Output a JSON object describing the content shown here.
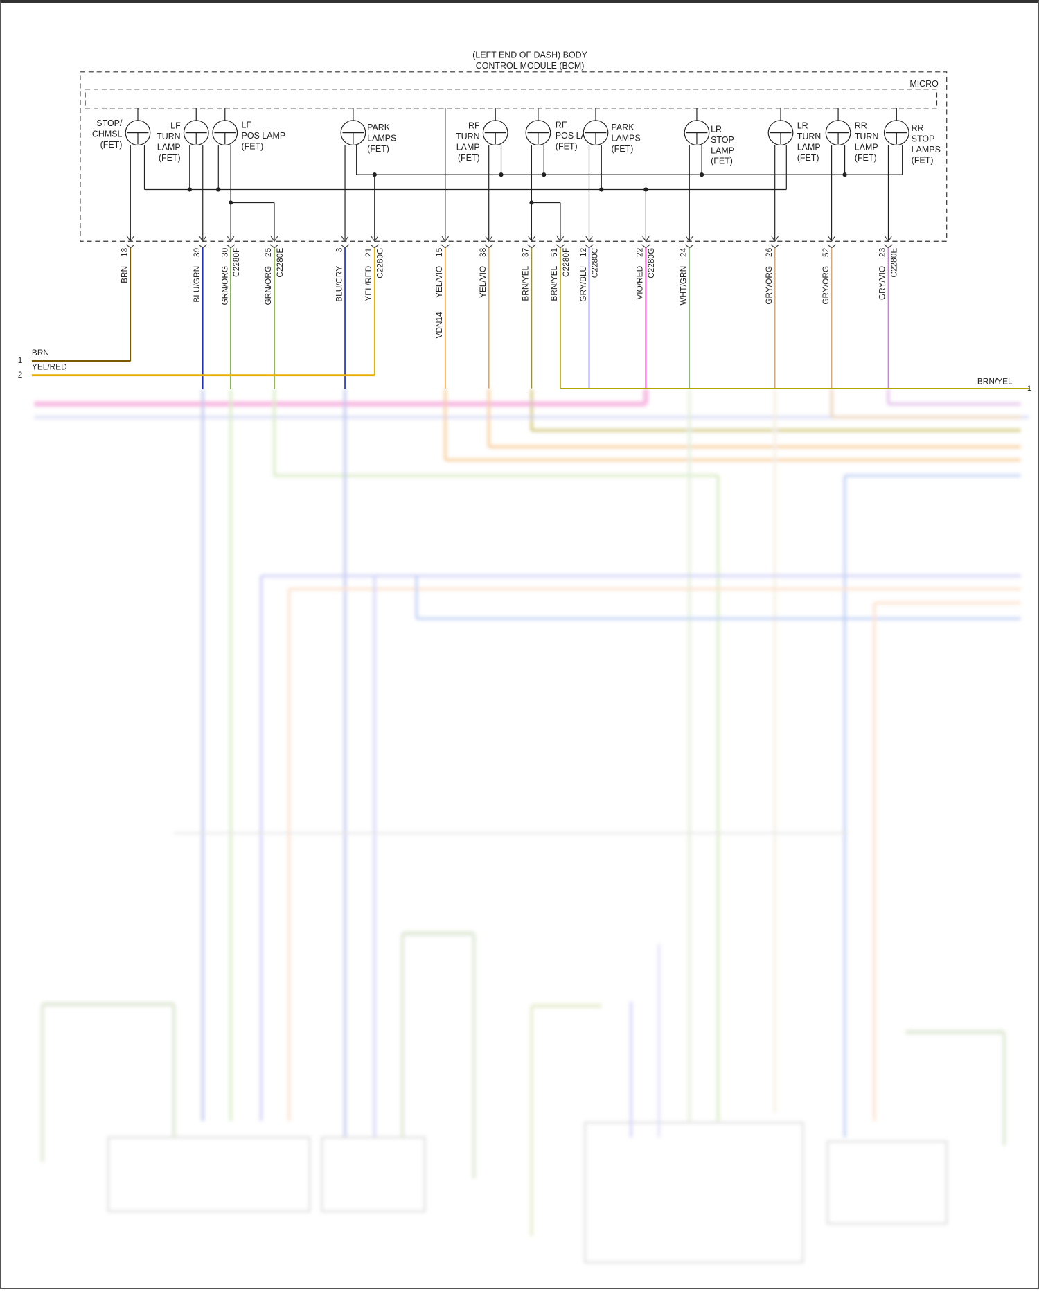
{
  "module": {
    "title_line1": "(LEFT END OF DASH) BODY",
    "title_line2": "CONTROL MODULE (BCM)",
    "micro_label": "MICRO"
  },
  "fets": [
    {
      "id": "stop-chmsl",
      "lines": [
        "STOP/",
        "CHMSL",
        "(FET)"
      ]
    },
    {
      "id": "lf-turn",
      "lines": [
        "LF",
        "TURN",
        "LAMP",
        "(FET)"
      ]
    },
    {
      "id": "lf-pos",
      "lines": [
        "LF",
        "POS LAMP",
        "(FET)"
      ]
    },
    {
      "id": "park-left",
      "lines": [
        "PARK",
        "LAMPS",
        "(FET)"
      ]
    },
    {
      "id": "rf-turn",
      "lines": [
        "RF",
        "TURN",
        "LAMP",
        "(FET)"
      ]
    },
    {
      "id": "rf-pos",
      "lines": [
        "RF",
        "POS LAMP",
        "(FET)"
      ]
    },
    {
      "id": "park-right",
      "lines": [
        "PARK",
        "LAMPS",
        "(FET)"
      ]
    },
    {
      "id": "lr-stop",
      "lines": [
        "LR",
        "STOP",
        "LAMP",
        "(FET)"
      ]
    },
    {
      "id": "lr-turn",
      "lines": [
        "LR",
        "TURN",
        "LAMP",
        "(FET)"
      ]
    },
    {
      "id": "rr-turn",
      "lines": [
        "RR",
        "TURN",
        "LAMP",
        "(FET)"
      ]
    },
    {
      "id": "rr-stop",
      "lines": [
        "RR",
        "STOP",
        "LAMPS",
        "(FET)"
      ]
    }
  ],
  "pins": [
    {
      "pin": "13",
      "wire": "BRN",
      "connector": "",
      "color": "#7a5a00"
    },
    {
      "pin": "39",
      "wire": "BLU/GRN",
      "connector": "",
      "color": "#1f2fc0"
    },
    {
      "pin": "30",
      "wire": "GRN/ORG",
      "connector": "C2280F",
      "color": "#5e9e1a"
    },
    {
      "pin": "25",
      "wire": "GRN/ORG",
      "connector": "C2280E",
      "color": "#78a830"
    },
    {
      "pin": "3",
      "wire": "BLU/GRY",
      "connector": "",
      "color": "#1f2fc0"
    },
    {
      "pin": "21",
      "wire": "YEL/RED",
      "connector": "C2280G",
      "color": "#e8b000"
    },
    {
      "pin": "15",
      "wire": "YEL/VIO",
      "connector": "",
      "color": "#f0a040",
      "extra": "VDN14"
    },
    {
      "pin": "38",
      "wire": "YEL/VIO",
      "connector": "",
      "color": "#f0a040"
    },
    {
      "pin": "37",
      "wire": "BRN/YEL",
      "connector": "",
      "color": "#a89400"
    },
    {
      "pin": "51",
      "wire": "BRN/YEL",
      "connector": "C2280F",
      "color": "#b4a400"
    },
    {
      "pin": "12",
      "wire": "GRY/BLU",
      "connector": "C2280C",
      "color": "#6c6cc4"
    },
    {
      "pin": "22",
      "wire": "VIO/RED",
      "connector": "C2280G",
      "color": "#e020a0"
    },
    {
      "pin": "24",
      "wire": "WHT/GRN",
      "connector": "",
      "color": "#80c070"
    },
    {
      "pin": "26",
      "wire": "GRY/ORG",
      "connector": "",
      "color": "#d4a878"
    },
    {
      "pin": "52",
      "wire": "GRY/ORG",
      "connector": "",
      "color": "#d4a878"
    },
    {
      "pin": "23",
      "wire": "GRY/VIO",
      "connector": "C2280E",
      "color": "#c484d4"
    }
  ],
  "left_terminals": [
    {
      "num": "1",
      "wire": "BRN"
    },
    {
      "num": "2",
      "wire": "YEL/RED"
    }
  ],
  "right_terminal": {
    "num": "1",
    "wire": "BRN/YEL"
  }
}
